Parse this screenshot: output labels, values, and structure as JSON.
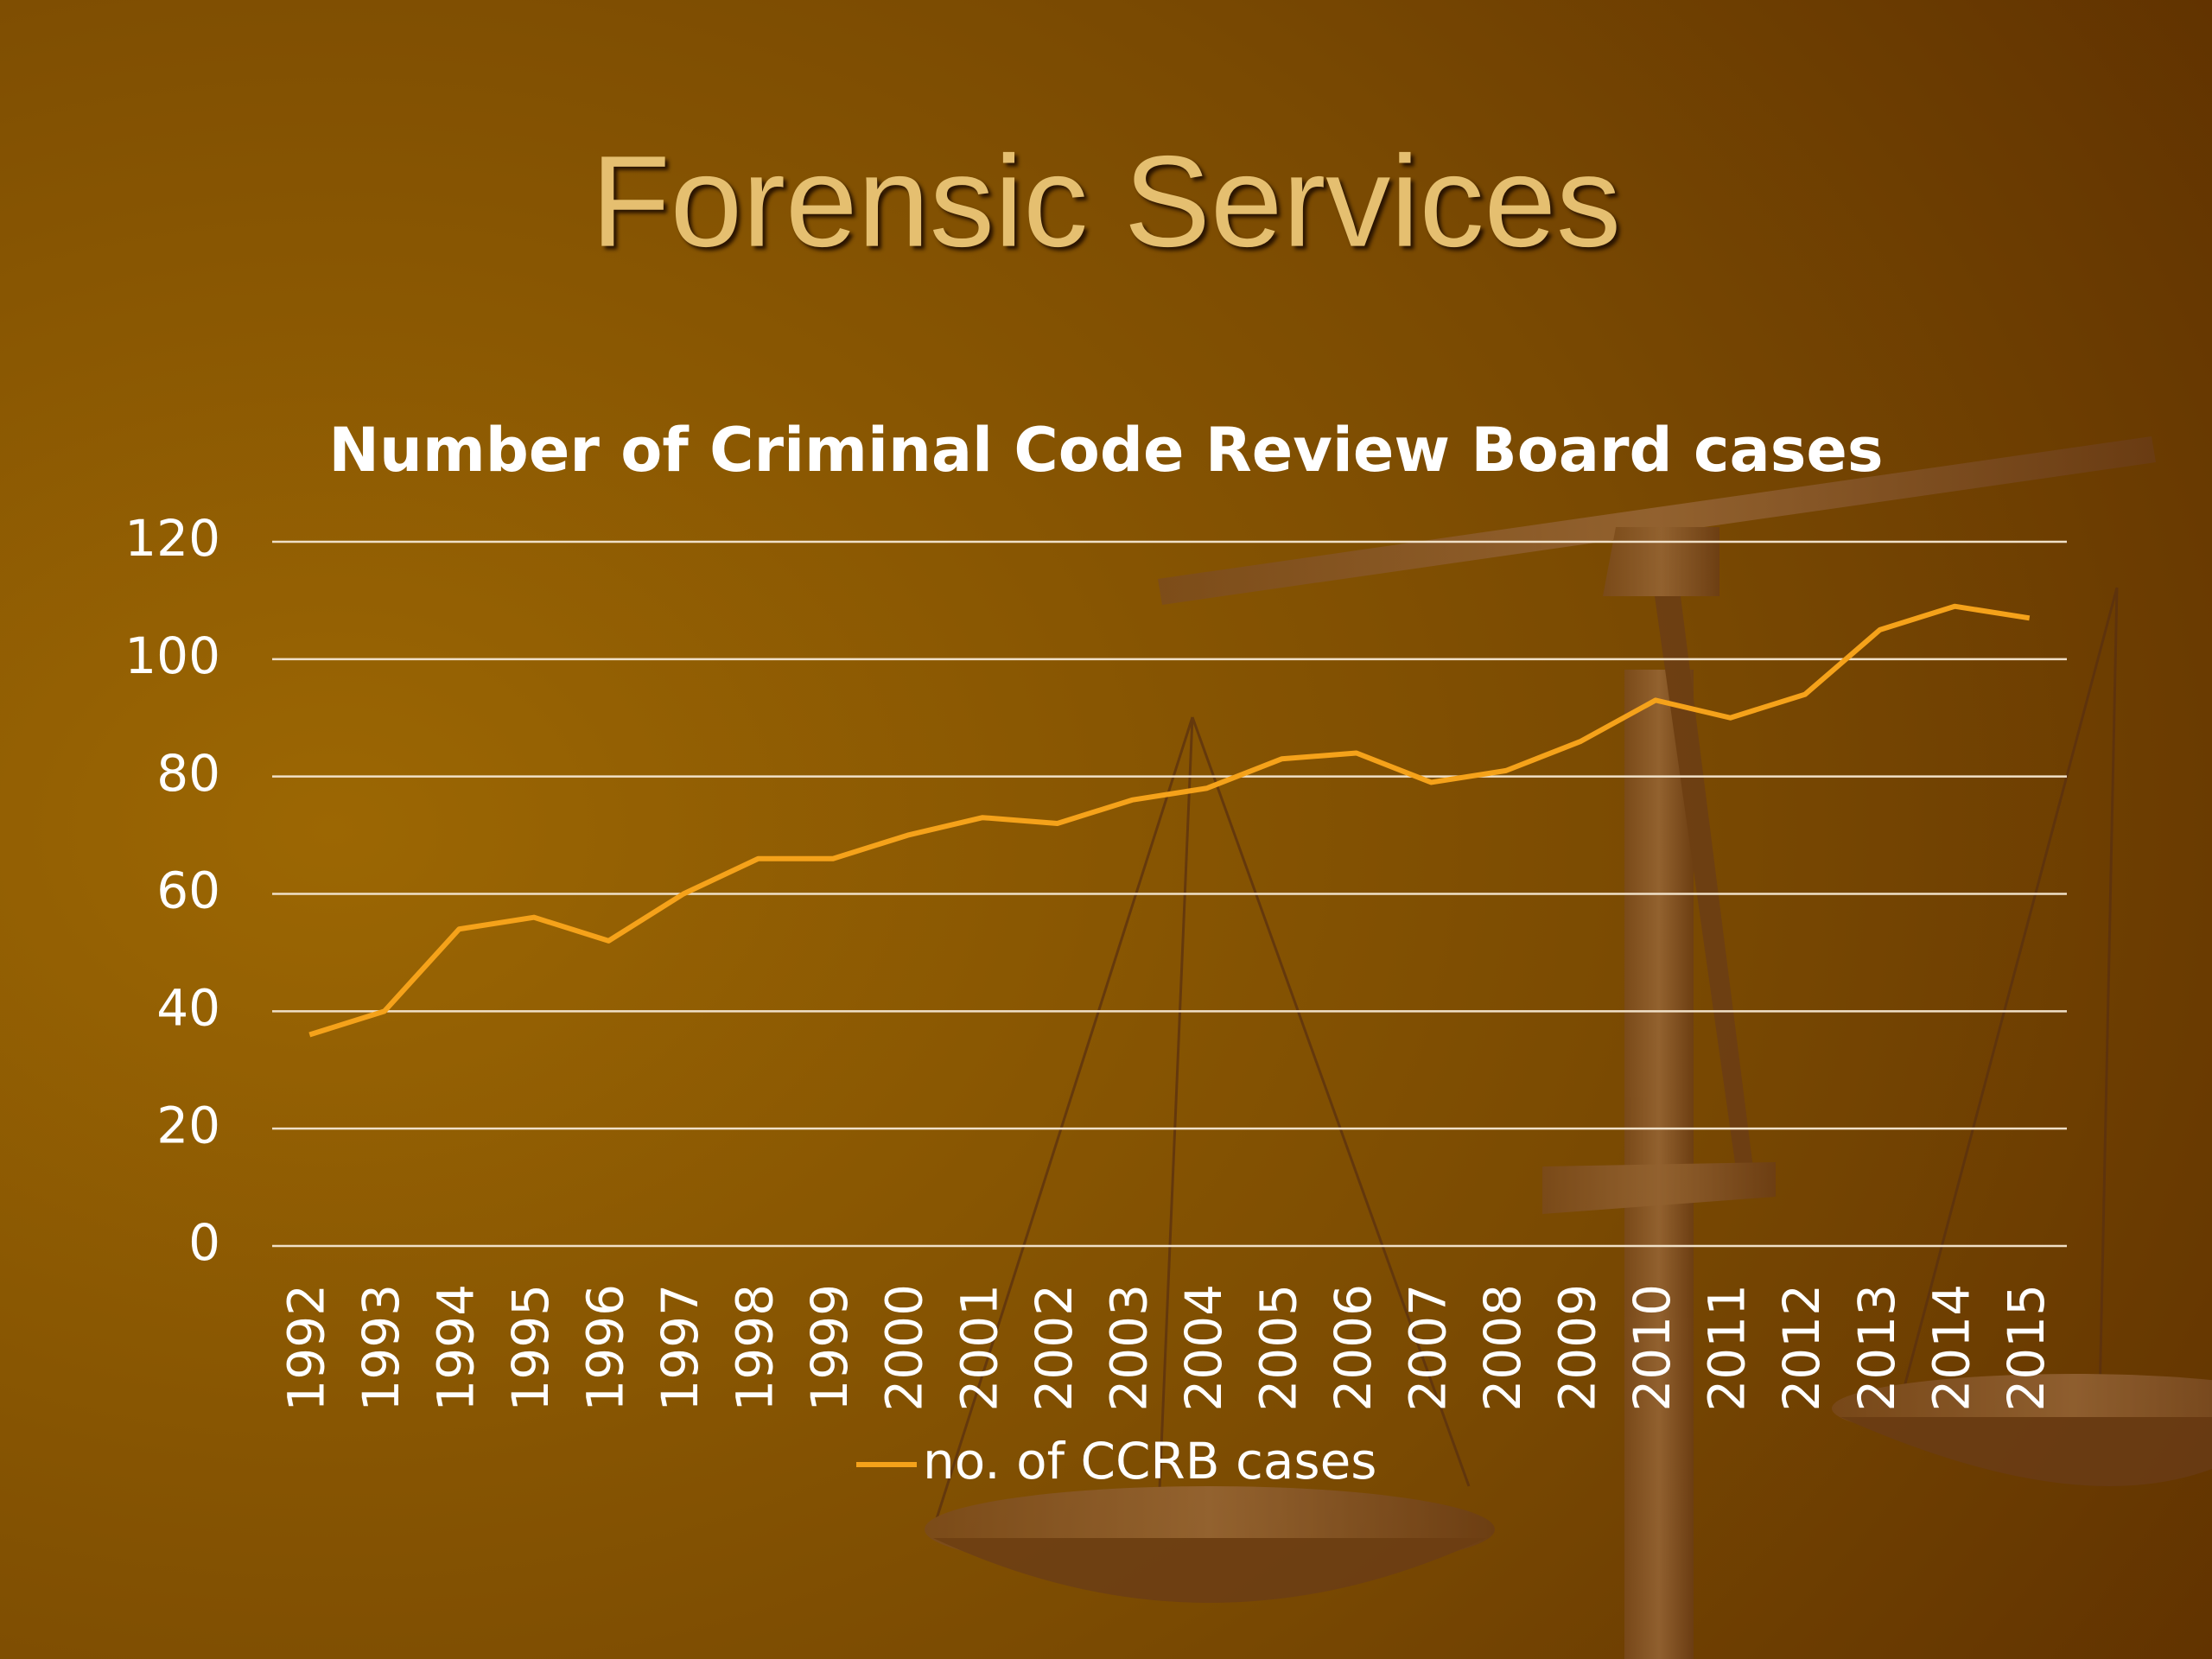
{
  "slide": {
    "title": "Forensic Services"
  },
  "chart_data": {
    "type": "line",
    "title": "Number of Criminal Code Review Board cases",
    "categories": [
      "1992",
      "1993",
      "1994",
      "1995",
      "1996",
      "1997",
      "1998",
      "1999",
      "2000",
      "2001",
      "2002",
      "2003",
      "2004",
      "2005",
      "2006",
      "2007",
      "2008",
      "2009",
      "2010",
      "2011",
      "2012",
      "2013",
      "2014",
      "2015"
    ],
    "series": [
      {
        "name": "no. of CCRB cases",
        "color": "#f5a21a",
        "values": [
          36,
          40,
          54,
          56,
          52,
          60,
          66,
          66,
          70,
          73,
          72,
          76,
          78,
          83,
          84,
          79,
          81,
          86,
          93,
          90,
          94,
          105,
          109,
          107
        ]
      }
    ],
    "ylim": [
      0,
      120
    ],
    "yticks": [
      0,
      20,
      40,
      60,
      80,
      100,
      120
    ],
    "grid": true,
    "legend": "bottom"
  }
}
